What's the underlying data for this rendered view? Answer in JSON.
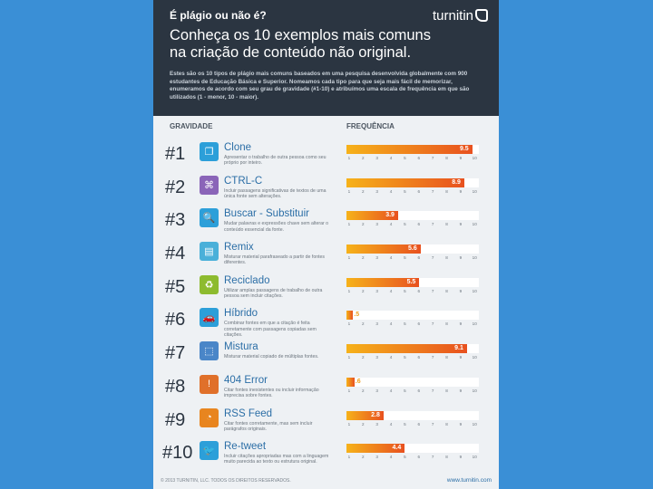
{
  "header": {
    "question": "É plágio ou não é?",
    "logo": "turnitin",
    "title_line1": "Conheça os 10 exemplos mais comuns",
    "title_line2": "na criação de conteúdo não original.",
    "intro": "Estes são os 10 tipos de plágio mais comuns baseados em uma pesquisa desenvolvida globalmente com 900 estudantes de Educação Básica e Superior. Nomeamos cada tipo para que seja mais fácil de memorizar, enumeramos de acordo com seu grau de gravidade (#1-10) e atribuímos uma escala de frequência em que são utilizados (1 - menor, 10 - maior)."
  },
  "columns": {
    "severity": "GRAVIDADE",
    "frequency": "FREQUÊNCIA"
  },
  "scale": [
    "1",
    "2",
    "3",
    "4",
    "5",
    "6",
    "7",
    "8",
    "9",
    "10"
  ],
  "items": [
    {
      "rank": "#1",
      "title": "Clone",
      "desc": "Apresentar o trabalho de outra pessoa como seu próprio por inteiro.",
      "value": 9.5,
      "label": "9.5",
      "icon": "clone-icon",
      "glyph": "❐",
      "color": "#2c9fd9"
    },
    {
      "rank": "#2",
      "title": "CTRL-C",
      "desc": "Incluir passagens significativas de textos de uma única fonte sem alterações.",
      "value": 8.9,
      "label": "8.9",
      "icon": "ctrl-c-icon",
      "glyph": "⌘",
      "color": "#8a64b8"
    },
    {
      "rank": "#3",
      "title": "Buscar - Substituir",
      "desc": "Mudar palavras e expressões chave sem alterar o conteúdo essencial da fonte.",
      "value": 3.9,
      "label": "3.9",
      "icon": "magnifier-icon",
      "glyph": "🔍",
      "color": "#2c9fd9"
    },
    {
      "rank": "#4",
      "title": "Remix",
      "desc": "Misturar material parafraseado a partir de fontes diferentes.",
      "value": 5.6,
      "label": "5.6",
      "icon": "remix-icon",
      "glyph": "▤",
      "color": "#4ab0d9"
    },
    {
      "rank": "#5",
      "title": "Reciclado",
      "desc": "Utilizar amplas passagens de trabalho de outra pessoa sem incluir citações.",
      "value": 5.5,
      "label": "5.5",
      "icon": "recycle-icon",
      "glyph": "♻",
      "color": "#8dbb2f"
    },
    {
      "rank": "#6",
      "title": "Híbrido",
      "desc": "Combinar fontes em que a citação é feita corretamente com passagens copiadas sem citações.",
      "value": 0.5,
      "label": ".5",
      "icon": "hybrid-car-icon",
      "glyph": "🚗",
      "color": "#2c9fd9"
    },
    {
      "rank": "#7",
      "title": "Mistura",
      "desc": "Misturar material copiado de múltiplas fontes.",
      "value": 9.1,
      "label": "9.1",
      "icon": "mixer-icon",
      "glyph": "⬚",
      "color": "#4a86c8"
    },
    {
      "rank": "#8",
      "title": "404 Error",
      "desc": "Citar fontes inexistentes ou incluir informação imprecisa sobre fontes.",
      "value": 0.6,
      "label": ".6",
      "icon": "warning-icon",
      "glyph": "!",
      "color": "#e0702a"
    },
    {
      "rank": "#9",
      "title": "RSS Feed",
      "desc": "Citar fontes corretamente, mas sem incluir parágrafos originais.",
      "value": 2.8,
      "label": "2.8",
      "icon": "rss-icon",
      "glyph": "◔",
      "color": "#e8851f"
    },
    {
      "rank": "#10",
      "title": "Re-tweet",
      "desc": "Incluir citações apropriadas mas com a linguagem muito parecida ao texto ou estrutura original.",
      "value": 4.4,
      "label": "4.4",
      "icon": "twitter-bird-icon",
      "glyph": "🐦",
      "color": "#2c9fd9"
    }
  ],
  "footer": {
    "left": "© 2013 TURNITIN, LLC. TODOS OS DIREITOS RESERVADOS.",
    "right": "www.turnitin.com"
  }
}
